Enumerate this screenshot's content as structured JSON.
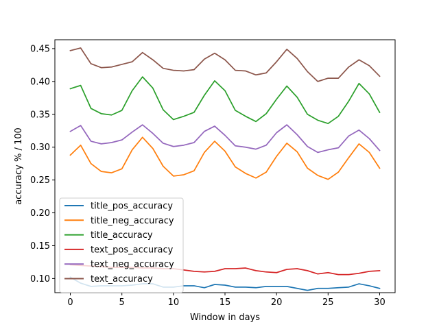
{
  "chart_data": {
    "type": "line",
    "xlabel": "Window in days",
    "ylabel": "accuracy % / 100",
    "xlim": [
      -1.5,
      31.5
    ],
    "ylim": [
      0.0785,
      0.4635
    ],
    "xticks": [
      0,
      5,
      10,
      15,
      20,
      25,
      30
    ],
    "xtick_labels": [
      "0",
      "5",
      "10",
      "15",
      "20",
      "25",
      "30"
    ],
    "yticks": [
      0.1,
      0.15,
      0.2,
      0.25,
      0.3,
      0.35,
      0.4,
      0.45
    ],
    "ytick_labels": [
      "0.10",
      "0.15",
      "0.20",
      "0.25",
      "0.30",
      "0.35",
      "0.40",
      "0.45"
    ],
    "grid": false,
    "legend_position": "lower-left",
    "x": [
      0,
      1,
      2,
      3,
      4,
      5,
      6,
      7,
      8,
      9,
      10,
      11,
      12,
      13,
      14,
      15,
      16,
      17,
      18,
      19,
      20,
      21,
      22,
      23,
      24,
      25,
      26,
      27,
      28,
      29,
      30
    ],
    "series": [
      {
        "name": "title_pos_accuracy",
        "color": "#1f77b4",
        "values": [
          0.102,
          0.093,
          0.088,
          0.089,
          0.089,
          0.089,
          0.09,
          0.092,
          0.092,
          0.087,
          0.087,
          0.089,
          0.089,
          0.086,
          0.091,
          0.09,
          0.087,
          0.087,
          0.086,
          0.088,
          0.088,
          0.088,
          0.085,
          0.082,
          0.085,
          0.085,
          0.086,
          0.087,
          0.092,
          0.089,
          0.085
        ]
      },
      {
        "name": "title_neg_accuracy",
        "color": "#ff7f0e",
        "values": [
          0.288,
          0.303,
          0.275,
          0.263,
          0.261,
          0.267,
          0.296,
          0.315,
          0.298,
          0.271,
          0.256,
          0.258,
          0.264,
          0.292,
          0.309,
          0.294,
          0.27,
          0.26,
          0.253,
          0.262,
          0.286,
          0.306,
          0.293,
          0.268,
          0.257,
          0.251,
          0.262,
          0.284,
          0.305,
          0.292,
          0.268
        ]
      },
      {
        "name": "title_accuracy",
        "color": "#2ca02c",
        "values": [
          0.389,
          0.394,
          0.359,
          0.351,
          0.349,
          0.356,
          0.386,
          0.407,
          0.39,
          0.357,
          0.342,
          0.347,
          0.353,
          0.379,
          0.401,
          0.386,
          0.356,
          0.347,
          0.339,
          0.351,
          0.373,
          0.393,
          0.376,
          0.35,
          0.341,
          0.336,
          0.347,
          0.37,
          0.397,
          0.381,
          0.353
        ]
      },
      {
        "name": "text_pos_accuracy",
        "color": "#d62728",
        "values": [
          0.121,
          0.12,
          0.119,
          0.118,
          0.117,
          0.117,
          0.117,
          0.116,
          0.116,
          0.115,
          0.115,
          0.113,
          0.111,
          0.11,
          0.111,
          0.115,
          0.115,
          0.116,
          0.112,
          0.11,
          0.109,
          0.114,
          0.115,
          0.112,
          0.107,
          0.109,
          0.106,
          0.106,
          0.108,
          0.111,
          0.112
        ]
      },
      {
        "name": "text_neg_accuracy",
        "color": "#9467bd",
        "values": [
          0.324,
          0.333,
          0.309,
          0.305,
          0.307,
          0.311,
          0.323,
          0.334,
          0.321,
          0.306,
          0.301,
          0.303,
          0.307,
          0.324,
          0.332,
          0.318,
          0.302,
          0.3,
          0.297,
          0.303,
          0.322,
          0.334,
          0.319,
          0.301,
          0.292,
          0.296,
          0.299,
          0.317,
          0.326,
          0.313,
          0.295
        ]
      },
      {
        "name": "text_accuracy",
        "color": "#8c564b",
        "values": [
          0.447,
          0.451,
          0.427,
          0.421,
          0.422,
          0.426,
          0.43,
          0.444,
          0.433,
          0.42,
          0.417,
          0.416,
          0.418,
          0.434,
          0.443,
          0.433,
          0.417,
          0.416,
          0.41,
          0.413,
          0.43,
          0.449,
          0.435,
          0.415,
          0.4,
          0.405,
          0.405,
          0.422,
          0.433,
          0.424,
          0.408
        ]
      }
    ]
  }
}
